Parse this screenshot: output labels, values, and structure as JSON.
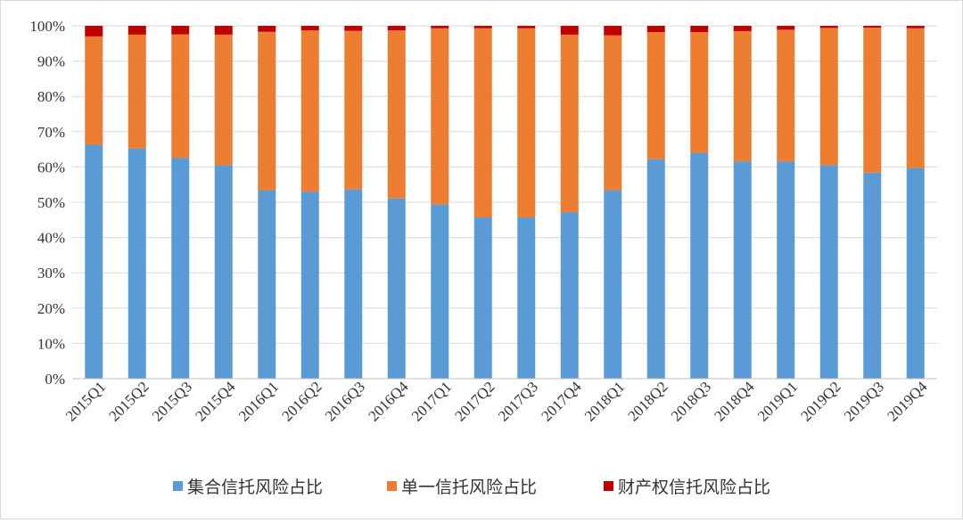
{
  "chart_data": {
    "type": "bar",
    "stacked": true,
    "percent": true,
    "categories": [
      "2015Q1",
      "2015Q2",
      "2015Q3",
      "2015Q4",
      "2016Q1",
      "2016Q2",
      "2016Q3",
      "2016Q4",
      "2017Q1",
      "2017Q2",
      "2017Q3",
      "2017Q4",
      "2018Q1",
      "2018Q2",
      "2018Q3",
      "2018Q4",
      "2019Q1",
      "2019Q2",
      "2019Q3",
      "2019Q4"
    ],
    "series": [
      {
        "name": "集合信托风险占比",
        "color": "#5b9bd5",
        "values": [
          66.3,
          65.3,
          62.6,
          60.5,
          53.4,
          53.0,
          53.7,
          51.1,
          49.4,
          45.7,
          45.7,
          47.2,
          53.4,
          62.2,
          64.0,
          61.6,
          61.6,
          60.5,
          58.4,
          59.7
        ]
      },
      {
        "name": "单一信托风险占比",
        "color": "#ed7d31",
        "values": [
          30.7,
          32.2,
          35.0,
          37.0,
          44.9,
          45.7,
          44.9,
          47.6,
          49.9,
          53.6,
          53.6,
          50.3,
          43.9,
          36.0,
          34.2,
          36.9,
          37.3,
          38.9,
          41.1,
          39.6
        ]
      },
      {
        "name": "财产权信托风险占比",
        "color": "#c00000",
        "values": [
          3.0,
          2.5,
          2.4,
          2.5,
          1.7,
          1.3,
          1.4,
          1.3,
          0.7,
          0.7,
          0.7,
          2.5,
          2.7,
          1.8,
          1.8,
          1.5,
          1.1,
          0.6,
          0.5,
          0.7
        ]
      }
    ],
    "y_ticks": [
      "0%",
      "10%",
      "20%",
      "30%",
      "40%",
      "50%",
      "60%",
      "70%",
      "80%",
      "90%",
      "100%"
    ],
    "ylim": [
      0,
      100
    ],
    "grid": true,
    "legend": "bottom",
    "title": "",
    "xlabel": "",
    "ylabel": ""
  }
}
